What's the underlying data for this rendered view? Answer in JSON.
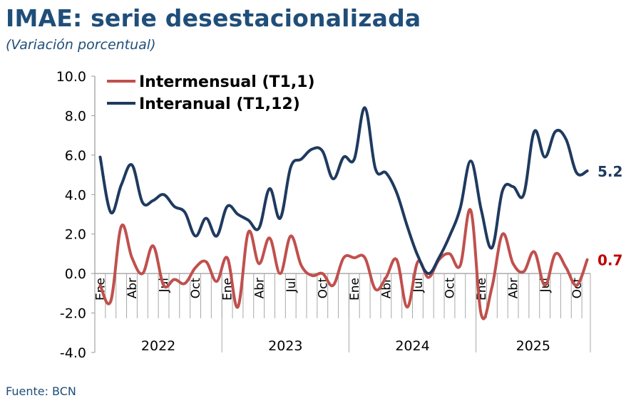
{
  "title": "IMAE: serie desestacionalizada",
  "subtitle": "(Variación porcentual)",
  "source": "Fuente: BCN",
  "colors": {
    "intermensual": "#c0504d",
    "interanual": "#1f3a5f",
    "title": "#1f4e79"
  },
  "chart_data": {
    "type": "line",
    "title": "IMAE: serie desestacionalizada",
    "ylabel": "Variación porcentual",
    "ylim": [
      -4,
      10
    ],
    "yticks": [
      "10.0",
      "8.0",
      "6.0",
      "4.0",
      "2.0",
      "0.0",
      "-2.0",
      "-4.0"
    ],
    "ytick_values": [
      10,
      8,
      6,
      4,
      2,
      0,
      -2,
      -4
    ],
    "grid": false,
    "legend_position": "top-left",
    "years": [
      "2022",
      "2023",
      "2024",
      "2025"
    ],
    "month_labels": [
      "Ene",
      "Abr",
      "Jul",
      "Oct"
    ],
    "series": [
      {
        "name": "Intermensual (T1,1)",
        "color": "#c0504d",
        "last_label": "0.7",
        "values": [
          -0.6,
          -1.4,
          2.4,
          0.8,
          0.0,
          1.4,
          -0.6,
          -0.3,
          -0.5,
          0.3,
          0.6,
          -0.4,
          0.8,
          -1.7,
          2.1,
          0.5,
          1.8,
          0.0,
          1.9,
          0.4,
          -0.1,
          0.0,
          -0.6,
          0.8,
          0.8,
          0.8,
          -0.8,
          -0.2,
          0.7,
          -1.7,
          0.6,
          -0.2,
          0.7,
          1.0,
          0.4,
          3.2,
          -2.1,
          -0.7,
          2.0,
          0.5,
          0.1,
          1.1,
          -0.6,
          1.0,
          0.3,
          -0.6,
          0.7
        ]
      },
      {
        "name": "Interanual (T1,12)",
        "color": "#1f3a5f",
        "last_label": "5.2",
        "values": [
          5.9,
          3.1,
          4.5,
          5.5,
          3.6,
          3.7,
          4.0,
          3.4,
          3.1,
          1.9,
          2.8,
          1.9,
          3.4,
          3.0,
          2.7,
          2.3,
          4.3,
          2.8,
          5.4,
          5.8,
          6.3,
          6.2,
          4.8,
          5.9,
          5.8,
          8.4,
          5.3,
          5.1,
          4.1,
          2.4,
          0.9,
          0.0,
          0.8,
          1.9,
          3.3,
          5.7,
          3.2,
          1.3,
          4.2,
          4.4,
          4.0,
          7.2,
          5.9,
          7.2,
          6.8,
          5.1,
          5.2
        ]
      }
    ]
  }
}
